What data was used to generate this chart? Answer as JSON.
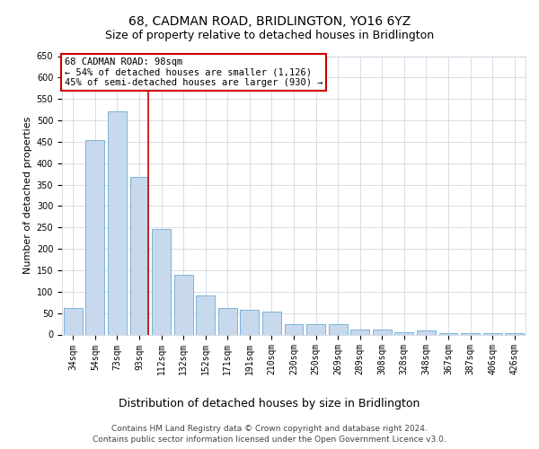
{
  "title": "68, CADMAN ROAD, BRIDLINGTON, YO16 6YZ",
  "subtitle": "Size of property relative to detached houses in Bridlington",
  "xlabel": "Distribution of detached houses by size in Bridlington",
  "ylabel": "Number of detached properties",
  "categories": [
    "34sqm",
    "54sqm",
    "73sqm",
    "93sqm",
    "112sqm",
    "132sqm",
    "152sqm",
    "171sqm",
    "191sqm",
    "210sqm",
    "230sqm",
    "250sqm",
    "269sqm",
    "289sqm",
    "308sqm",
    "328sqm",
    "348sqm",
    "367sqm",
    "387sqm",
    "406sqm",
    "426sqm"
  ],
  "values": [
    62,
    455,
    522,
    368,
    247,
    140,
    92,
    62,
    57,
    54,
    25,
    25,
    25,
    12,
    12,
    6,
    9,
    4,
    4,
    4,
    4
  ],
  "bar_color": "#c8d9ed",
  "bar_edge_color": "#6aaad4",
  "red_line_x": 3,
  "annotation_box_text": "68 CADMAN ROAD: 98sqm\n← 54% of detached houses are smaller (1,126)\n45% of semi-detached houses are larger (930) →",
  "annotation_box_color": "#ffffff",
  "annotation_box_edge_color": "#cc0000",
  "ylim": [
    0,
    650
  ],
  "yticks": [
    0,
    50,
    100,
    150,
    200,
    250,
    300,
    350,
    400,
    450,
    500,
    550,
    600,
    650
  ],
  "footer_line1": "Contains HM Land Registry data © Crown copyright and database right 2024.",
  "footer_line2": "Contains public sector information licensed under the Open Government Licence v3.0.",
  "bg_color": "#ffffff",
  "grid_color": "#c8d0dc",
  "title_fontsize": 10,
  "subtitle_fontsize": 9,
  "xlabel_fontsize": 9,
  "ylabel_fontsize": 8,
  "tick_fontsize": 7,
  "annotation_fontsize": 7.5,
  "footer_fontsize": 6.5
}
